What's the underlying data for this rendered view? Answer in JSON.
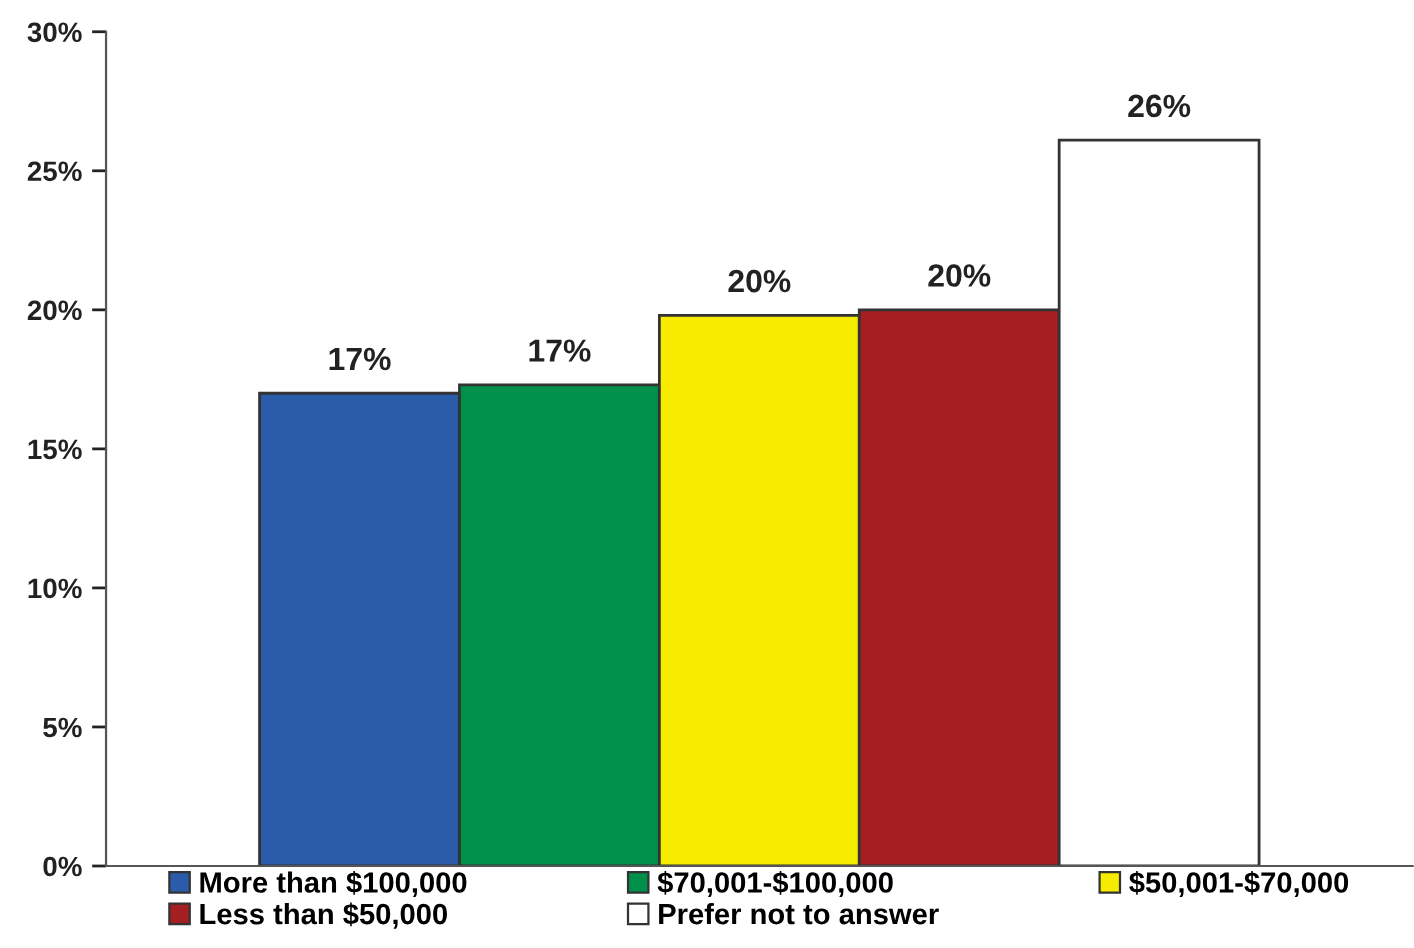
{
  "chart_data": {
    "type": "bar",
    "categories": [
      null
    ],
    "series": [
      {
        "name": "More than $100,000",
        "color": "#2a5caa",
        "values": [
          17.0
        ],
        "value_labels": [
          "17%"
        ]
      },
      {
        "name": "$70,001-$100,000",
        "color": "#00904a",
        "values": [
          17.3
        ],
        "value_labels": [
          "17%"
        ]
      },
      {
        "name": "$50,001-$70,000",
        "color": "#f7ec00",
        "values": [
          19.8
        ],
        "value_labels": [
          "20%"
        ]
      },
      {
        "name": "Less than $50,000",
        "color": "#a51e22",
        "values": [
          20.0
        ],
        "value_labels": [
          "20%"
        ]
      },
      {
        "name": "Prefer not to answer",
        "color": "#ffffff",
        "values": [
          26.1
        ],
        "value_labels": [
          "26%"
        ]
      }
    ],
    "ylim": [
      0,
      30
    ],
    "yticks": [
      {
        "value": 0,
        "label": "0%"
      },
      {
        "value": 5,
        "label": "5%"
      },
      {
        "value": 10,
        "label": "10%"
      },
      {
        "value": 15,
        "label": "15%"
      },
      {
        "value": 20,
        "label": "20%"
      },
      {
        "value": 25,
        "label": "25%"
      },
      {
        "value": 30,
        "label": "30%"
      }
    ],
    "grid": false,
    "legend": "bottom",
    "tick_labels": "y"
  }
}
